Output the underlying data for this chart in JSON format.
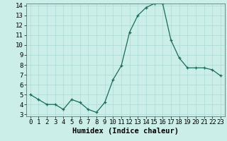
{
  "x": [
    0,
    1,
    2,
    3,
    4,
    5,
    6,
    7,
    8,
    9,
    10,
    11,
    12,
    13,
    14,
    15,
    16,
    17,
    18,
    19,
    20,
    21,
    22,
    23
  ],
  "y": [
    5.0,
    4.5,
    4.0,
    4.0,
    3.5,
    4.5,
    4.2,
    3.5,
    3.2,
    4.2,
    6.5,
    7.9,
    11.3,
    13.0,
    13.8,
    14.2,
    14.2,
    10.5,
    8.7,
    7.7,
    7.7,
    7.7,
    7.5,
    6.9
  ],
  "line_color": "#1a6b5a",
  "marker": "+",
  "marker_size": 3,
  "bg_color": "#cceee8",
  "grid_color": "#b0ddd8",
  "xlabel": "Humidex (Indice chaleur)",
  "ylim_min": 3,
  "ylim_max": 14,
  "xlim_min": -0.5,
  "xlim_max": 23.5,
  "yticks": [
    3,
    4,
    5,
    6,
    7,
    8,
    9,
    10,
    11,
    12,
    13,
    14
  ],
  "xticks": [
    0,
    1,
    2,
    3,
    4,
    5,
    6,
    7,
    8,
    9,
    10,
    11,
    12,
    13,
    14,
    15,
    16,
    17,
    18,
    19,
    20,
    21,
    22,
    23
  ],
  "xlabel_fontsize": 7.5,
  "tick_fontsize": 6.5
}
